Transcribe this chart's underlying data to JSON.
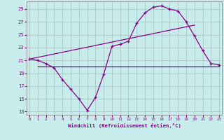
{
  "xlabel": "Windchill (Refroidissement éolien,°C)",
  "bg_color": "#c8ecec",
  "grid_color": "#b0c8c8",
  "line_color": "#880088",
  "x_ticks": [
    0,
    1,
    2,
    3,
    4,
    5,
    6,
    7,
    8,
    9,
    10,
    11,
    12,
    13,
    14,
    15,
    16,
    17,
    18,
    19,
    20,
    21,
    22,
    23
  ],
  "y_ticks": [
    13,
    15,
    17,
    19,
    21,
    23,
    25,
    27,
    29
  ],
  "xlim": [
    -0.3,
    23.3
  ],
  "ylim": [
    12.5,
    30.2
  ],
  "windchill_x": [
    0,
    1,
    2,
    3,
    4,
    5,
    6,
    7,
    8,
    9,
    10,
    11,
    12,
    13,
    14,
    15,
    16,
    17,
    18,
    19,
    20,
    21,
    22,
    23
  ],
  "windchill_y": [
    21.2,
    21.0,
    20.5,
    19.8,
    18.0,
    16.5,
    15.0,
    13.2,
    15.2,
    18.8,
    23.2,
    23.5,
    24.0,
    26.8,
    28.4,
    29.3,
    29.5,
    29.0,
    28.7,
    27.0,
    24.8,
    22.5,
    20.5,
    20.3
  ],
  "diag_line_x": [
    0,
    20
  ],
  "diag_line_y": [
    21.2,
    26.5
  ],
  "horiz_line_x": [
    1,
    23
  ],
  "horiz_line_y": [
    20.0,
    20.0
  ]
}
